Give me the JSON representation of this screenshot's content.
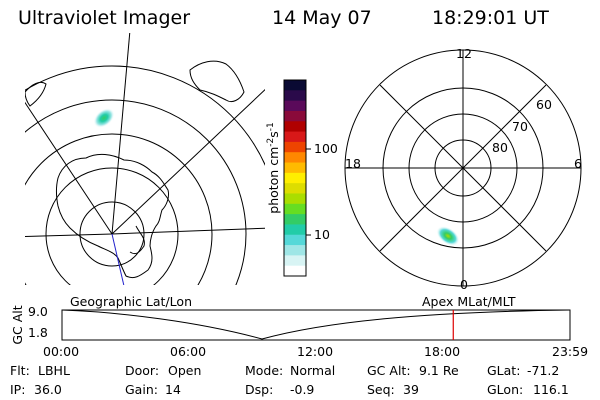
{
  "header": {
    "title": "Ultraviolet Imager",
    "date": "14 May 07",
    "time": "18:29:01 UT"
  },
  "colorbar": {
    "unit_label": "photon cm-2s-1",
    "ticks": [
      "100",
      "10"
    ],
    "colors": [
      "#0a0a33",
      "#2a0a4a",
      "#5a0a5a",
      "#8a0a3a",
      "#b00000",
      "#d81818",
      "#ee4400",
      "#ff8800",
      "#ffbb00",
      "#ffee00",
      "#dddd00",
      "#aadd00",
      "#66dd22",
      "#33cc66",
      "#22cca8",
      "#55d8d8",
      "#9fe6e6",
      "#d8f4f4",
      "#ffffff"
    ]
  },
  "mlt_dial": {
    "labels": {
      "top": "12",
      "bottom": "0",
      "left": "18",
      "right": "6"
    },
    "lat_labels": [
      "60",
      "70",
      "80"
    ]
  },
  "timeline": {
    "left_title": "Geographic Lat/Lon",
    "right_title": "Apex MLat/MLT",
    "yaxis_title": "GC Alt",
    "yticks": [
      "9.0",
      "1.8"
    ],
    "xticks": [
      "00:00",
      "06:00",
      "12:00",
      "18:00",
      "23:59"
    ],
    "current_time_fraction": 0.7702,
    "marker_color": "#dd0000"
  },
  "info": {
    "flt": {
      "label": "Flt:",
      "value": "LBHL"
    },
    "ip": {
      "label": "IP:",
      "value": "36.0"
    },
    "door": {
      "label": "Door:",
      "value": "Open"
    },
    "gain": {
      "label": "Gain:",
      "value": "14"
    },
    "mode": {
      "label": "Mode:",
      "value": "Normal"
    },
    "dsp": {
      "label": "Dsp:",
      "value": "-0.9"
    },
    "gcalt": {
      "label": "GC Alt:",
      "value": "9.1 Re"
    },
    "seq": {
      "label": "Seq:",
      "value": "39"
    },
    "glat": {
      "label": "GLat:",
      "value": "-71.2"
    },
    "glon": {
      "label": "GLon:",
      "value": "116.1"
    }
  }
}
